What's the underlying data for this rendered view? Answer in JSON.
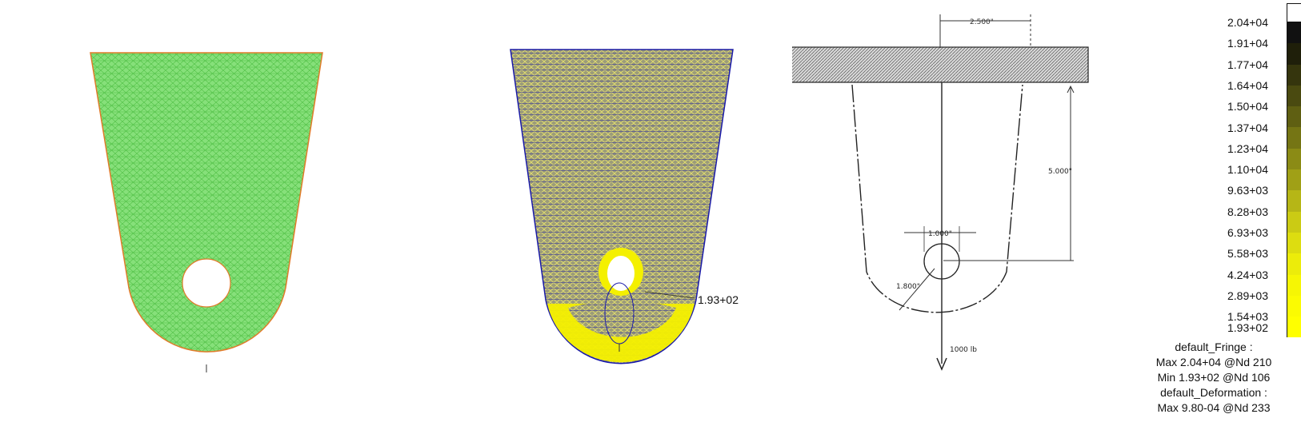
{
  "fringe_panel": {
    "min_callout": "1.93+02"
  },
  "drawing": {
    "dim_top": "2.500\"",
    "dim_height": "5.000\"",
    "dim_hole": "1.000\"",
    "dim_radius": "1.800\"",
    "load": "1000 lb"
  },
  "legend": {
    "levels": [
      {
        "label": "2.04+04",
        "color": "#111111"
      },
      {
        "label": "1.91+04",
        "color": "#1f1f0a"
      },
      {
        "label": "1.77+04",
        "color": "#35350d"
      },
      {
        "label": "1.64+04",
        "color": "#4a4a10"
      },
      {
        "label": "1.50+04",
        "color": "#5f5f12"
      },
      {
        "label": "1.37+04",
        "color": "#757514"
      },
      {
        "label": "1.23+04",
        "color": "#8b8b15"
      },
      {
        "label": "1.10+04",
        "color": "#a0a016"
      },
      {
        "label": "9.63+03",
        "color": "#b6b616"
      },
      {
        "label": "8.28+03",
        "color": "#cbcb14"
      },
      {
        "label": "6.93+03",
        "color": "#dddd10"
      },
      {
        "label": "5.58+03",
        "color": "#ecec0a"
      },
      {
        "label": "4.24+03",
        "color": "#f6f604"
      },
      {
        "label": "2.89+03",
        "color": "#fbfb02"
      },
      {
        "label": "1.54+03",
        "color": "#ffff00"
      },
      {
        "label": "1.93+02",
        "color": "#ffff00"
      }
    ],
    "info": {
      "fringe_title": "default_Fringe :",
      "fringe_max": "Max 2.04+04 @Nd 210",
      "fringe_min": "Min 1.93+02 @Nd 106",
      "deformation_title": "default_Deformation :",
      "deformation_max": "Max 9.80-04 @Nd 233"
    }
  },
  "colors": {
    "mesh_green": "#7ddc6e",
    "mesh_line": "#46b43a",
    "outline_orange": "#e07b2a",
    "fringe_blue": "#1a1aa8",
    "fringe_yellow": "#f4f000",
    "fringe_dark": "#8a8a6a"
  }
}
